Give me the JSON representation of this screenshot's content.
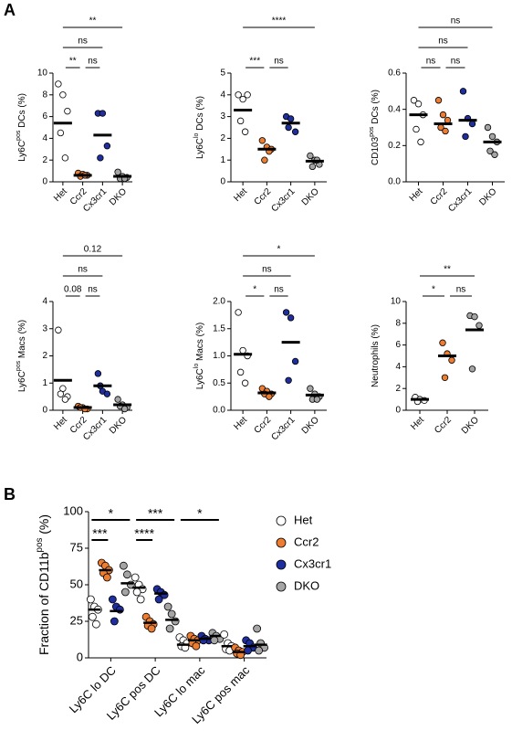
{
  "panel_labels": [
    "A",
    "B"
  ],
  "chart_data": [
    {
      "type": "dot",
      "ylabel": {
        "base": "Ly6C",
        "sup": "pos",
        "rest": " DCs (%)"
      },
      "categories": [
        "Het",
        "Ccr2",
        "Cx3cr1",
        "DKO"
      ],
      "colors": [
        "#ffffff",
        "#ed7d31",
        "#1f2e9e",
        "#a5a5a5"
      ],
      "points": [
        [
          9,
          8,
          6.5,
          4.5,
          2.2
        ],
        [
          0.8,
          0.7,
          0.6,
          0.5,
          0.6
        ],
        [
          6.3,
          6.3,
          3.3,
          2.2
        ],
        [
          0.9,
          0.5,
          0.4,
          0.3,
          0.3
        ]
      ],
      "means": [
        5.4,
        0.6,
        4.3,
        0.5
      ],
      "ylim": [
        0,
        10
      ],
      "yticks": [
        0,
        2,
        4,
        6,
        8,
        10
      ],
      "comparisons": [
        {
          "from": "Het",
          "to": "Ccr2",
          "label": "**"
        },
        {
          "from": "Ccr2",
          "to": "Cx3cr1",
          "label": "ns"
        },
        {
          "from": "Het",
          "to": "Cx3cr1",
          "label": "ns"
        },
        {
          "from": "Het",
          "to": "DKO",
          "label": "**"
        }
      ]
    },
    {
      "type": "dot",
      "ylabel": {
        "base": "Ly6C",
        "sup": "lo",
        "rest": " DCs (%)"
      },
      "categories": [
        "Het",
        "Ccr2",
        "Cx3cr1",
        "DKO"
      ],
      "colors": [
        "#ffffff",
        "#ed7d31",
        "#1f2e9e",
        "#a5a5a5"
      ],
      "points": [
        [
          4.0,
          3.8,
          4.0,
          2.8,
          2.3
        ],
        [
          1.9,
          1.6,
          1.5,
          1.0,
          1.4
        ],
        [
          3.0,
          2.9,
          2.3,
          2.5
        ],
        [
          1.2,
          1.0,
          0.8,
          0.7,
          1.0
        ]
      ],
      "means": [
        3.3,
        1.5,
        2.7,
        0.95
      ],
      "ylim": [
        0,
        5
      ],
      "yticks": [
        0,
        1,
        2,
        3,
        4,
        5
      ],
      "comparisons": [
        {
          "from": "Het",
          "to": "Ccr2",
          "label": "***"
        },
        {
          "from": "Ccr2",
          "to": "Cx3cr1",
          "label": "ns"
        },
        {
          "from": "Het",
          "to": "DKO",
          "label": "****"
        }
      ]
    },
    {
      "type": "dot",
      "ylabel": {
        "base": "CD103",
        "sup": "pos",
        "rest": " DCs (%)"
      },
      "categories": [
        "Het",
        "Ccr2",
        "Cx3cr1",
        "DKO"
      ],
      "colors": [
        "#ffffff",
        "#ed7d31",
        "#1f2e9e",
        "#a5a5a5"
      ],
      "points": [
        [
          0.45,
          0.43,
          0.37,
          0.29,
          0.22
        ],
        [
          0.45,
          0.37,
          0.34,
          0.3,
          0.28
        ],
        [
          0.5,
          0.35,
          0.32,
          0.25
        ],
        [
          0.3,
          0.25,
          0.22,
          0.17,
          0.15
        ]
      ],
      "means": [
        0.37,
        0.32,
        0.34,
        0.22
      ],
      "ylim": [
        0,
        0.6
      ],
      "yticks": [
        {
          "value": 0,
          "label": "0.0"
        },
        0.2,
        0.4,
        0.6
      ],
      "comparisons": [
        {
          "from": "Het",
          "to": "Ccr2",
          "label": "ns"
        },
        {
          "from": "Ccr2",
          "to": "Cx3cr1",
          "label": "ns"
        },
        {
          "from": "Het",
          "to": "Cx3cr1",
          "label": "ns"
        },
        {
          "from": "Het",
          "to": "DKO",
          "label": "ns"
        }
      ]
    },
    {
      "type": "dot",
      "ylabel": {
        "base": "Ly6C",
        "sup": "pos",
        "rest": " Macs (%)"
      },
      "categories": [
        "Het",
        "Ccr2",
        "Cx3cr1",
        "DKO"
      ],
      "colors": [
        "#ffffff",
        "#ed7d31",
        "#1f2e9e",
        "#a5a5a5"
      ],
      "points": [
        [
          2.95,
          0.8,
          0.5,
          0.6,
          0.4
        ],
        [
          0.15,
          0.1,
          0.05,
          0.1,
          0.05
        ],
        [
          1.35,
          0.7,
          0.6,
          0.9
        ],
        [
          0.4,
          0.2,
          0.1,
          0.15,
          0.05
        ]
      ],
      "means": [
        1.1,
        0.1,
        0.9,
        0.2
      ],
      "ylim": [
        0,
        4
      ],
      "yticks": [
        0,
        1,
        2,
        3,
        4
      ],
      "comparisons": [
        {
          "from": "Het",
          "to": "Ccr2",
          "label": "0.08"
        },
        {
          "from": "Ccr2",
          "to": "Cx3cr1",
          "label": "ns"
        },
        {
          "from": "Het",
          "to": "Cx3cr1",
          "label": "ns"
        },
        {
          "from": "Het",
          "to": "DKO",
          "label": "0.12"
        }
      ]
    },
    {
      "type": "dot",
      "ylabel": {
        "base": "Ly6C",
        "sup": "lo",
        "rest": " Macs (%)"
      },
      "categories": [
        "Het",
        "Ccr2",
        "Cx3cr1",
        "DKO"
      ],
      "colors": [
        "#ffffff",
        "#ed7d31",
        "#1f2e9e",
        "#a5a5a5"
      ],
      "points": [
        [
          1.8,
          1.1,
          1.0,
          0.7,
          0.5
        ],
        [
          0.4,
          0.35,
          0.3,
          0.3,
          0.25
        ],
        [
          1.8,
          1.7,
          0.9,
          0.55
        ],
        [
          0.4,
          0.3,
          0.25,
          0.2,
          0.2
        ]
      ],
      "means": [
        1.03,
        0.32,
        1.25,
        0.28
      ],
      "ylim": [
        0,
        2
      ],
      "yticks": [
        {
          "value": 0,
          "label": "0.0"
        },
        0.5,
        {
          "value": 1,
          "label": "1.0"
        },
        1.5,
        {
          "value": 2,
          "label": "2.0"
        }
      ],
      "comparisons": [
        {
          "from": "Het",
          "to": "Ccr2",
          "label": "*"
        },
        {
          "from": "Ccr2",
          "to": "Cx3cr1",
          "label": "ns"
        },
        {
          "from": "Het",
          "to": "Cx3cr1",
          "label": "ns"
        },
        {
          "from": "Het",
          "to": "DKO",
          "label": "*"
        }
      ]
    },
    {
      "type": "dot",
      "ylabel": {
        "base": "Neutrophils (%)"
      },
      "categories": [
        "Het",
        "Ccr2",
        "DKO"
      ],
      "colors": [
        "#ffffff",
        "#ed7d31",
        "#a5a5a5"
      ],
      "points": [
        [
          1.2,
          1.0,
          0.9,
          0.8
        ],
        [
          6.2,
          5.2,
          4.6,
          3.0
        ],
        [
          8.7,
          8.6,
          7.8,
          3.8
        ]
      ],
      "means": [
        1.0,
        5.0,
        7.4
      ],
      "ylim": [
        0,
        10
      ],
      "yticks": [
        0,
        2,
        4,
        6,
        8,
        10
      ],
      "comparisons": [
        {
          "from": "Het",
          "to": "Ccr2",
          "label": "*"
        },
        {
          "from": "Ccr2",
          "to": "DKO",
          "label": "ns"
        },
        {
          "from": "Het",
          "to": "DKO",
          "label": "**"
        }
      ]
    },
    {
      "type": "grouped-dot",
      "ylabel": {
        "base": "Fraction of CD11b",
        "sup": "pos",
        "rest": " (%)"
      },
      "categories": [
        "Ly6C lo DC",
        "Ly6C pos DC",
        "Ly6C lo mac",
        "Ly6C pos mac"
      ],
      "ylim": [
        0,
        100
      ],
      "yticks": [
        0,
        25,
        50,
        75,
        100
      ],
      "legend": "right",
      "series": [
        {
          "name": "Het",
          "color": "#ffffff",
          "values": [
            [
              40,
              35,
              33,
              28,
              23
            ],
            [
              55,
              50,
              47,
              45,
              40
            ],
            [
              14,
              12,
              10,
              8,
              7
            ],
            [
              16,
              10,
              8,
              6,
              5
            ]
          ],
          "means": [
            33,
            48,
            9,
            8
          ]
        },
        {
          "name": "Ccr2",
          "color": "#ed7d31",
          "values": [
            [
              65,
              63,
              60,
              58,
              55
            ],
            [
              28,
              25,
              23,
              22,
              20
            ],
            [
              15,
              13,
              12,
              10,
              8
            ],
            [
              7,
              5,
              4,
              3,
              2
            ]
          ],
          "means": [
            60,
            24,
            12,
            4
          ]
        },
        {
          "name": "Cx3cr1",
          "color": "#1f2e9e",
          "values": [
            [
              40,
              35,
              33,
              25
            ],
            [
              47,
              45,
              43,
              40
            ],
            [
              15,
              13,
              12,
              12
            ],
            [
              12,
              10,
              7,
              5
            ]
          ],
          "means": [
            32,
            44,
            13,
            8
          ]
        },
        {
          "name": "DKO",
          "color": "#a5a5a5",
          "values": [
            [
              63,
              57,
              50,
              45
            ],
            [
              35,
              30,
              25,
              20
            ],
            [
              17,
              15,
              13,
              12
            ],
            [
              20,
              10,
              7,
              5
            ]
          ],
          "means": [
            51,
            26,
            15,
            9
          ]
        }
      ],
      "comparisons": [
        {
          "category": "Ly6C lo DC",
          "from": "Het",
          "to": "Ccr2",
          "label": "***"
        },
        {
          "category": "Ly6C lo DC",
          "from": "Het",
          "to": "DKO",
          "label": "*"
        },
        {
          "category": "Ly6C pos DC",
          "from": "Het",
          "to": "Ccr2",
          "label": "****"
        },
        {
          "category": "Ly6C pos DC",
          "from": "Het",
          "to": "DKO",
          "label": "***"
        },
        {
          "category": "Ly6C lo mac",
          "from": "Het",
          "to": "DKO",
          "label": "*"
        }
      ]
    }
  ]
}
